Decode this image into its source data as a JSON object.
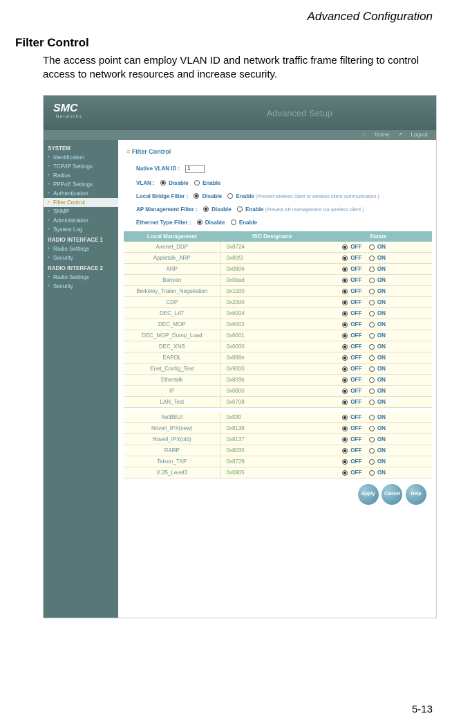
{
  "header": "Advanced Configuration",
  "title": "Filter Control",
  "desc": "The access point can employ VLAN ID and network traffic frame filtering to control access to network resources and increase security.",
  "page_num": "5-13",
  "ui": {
    "logo": "SMC",
    "logo_sub": "N e t w o r k s",
    "banner_title": "Advanced Setup",
    "home": "Home",
    "logout": "Logout",
    "sidebar": {
      "system_hdr": "SYSTEM",
      "items1": [
        {
          "label": "Identification"
        },
        {
          "label": "TCP/IP Settings"
        },
        {
          "label": "Radius"
        },
        {
          "label": "PPPoE Settings"
        },
        {
          "label": "Authentication"
        },
        {
          "label": "Filter Control",
          "active": true
        },
        {
          "label": "SNMP"
        },
        {
          "label": "Administration"
        },
        {
          "label": "System Log"
        }
      ],
      "ri1_hdr": "RADIO INTERFACE 1",
      "ri1": [
        {
          "label": "Radio Settings"
        },
        {
          "label": "Security"
        }
      ],
      "ri2_hdr": "RADIO INTERFACE 2",
      "ri2": [
        {
          "label": "Radio Settings"
        },
        {
          "label": "Security"
        }
      ]
    },
    "crumb": "Filter Control",
    "fields": {
      "native_vlan": {
        "label": "Native VLAN ID  :",
        "value": "1"
      },
      "vlan": {
        "label": "VLAN  :",
        "disable": "Disable",
        "enable": "Enable"
      },
      "bridge": {
        "label": "Local Bridge Filter  :",
        "disable": "Disable",
        "enable": "Enable",
        "note": "(Prevent wireless client to wireless client communication.)"
      },
      "apmgmt": {
        "label": "AP Management Filter  :",
        "disable": "Disable",
        "enable": "Enable",
        "note": "(Prevent AP mamagement via wireless client.)"
      },
      "ether": {
        "label": "Ethernet Type Filter  :",
        "disable": "Disable",
        "enable": "Enable"
      }
    },
    "table": {
      "h1": "Local Management",
      "h2": "ISO Designator",
      "h3": "Status",
      "off": "OFF",
      "on": "ON",
      "rows1": [
        {
          "name": "Aironet_DDP",
          "iso": "0x8724"
        },
        {
          "name": "Appletalk_ARP",
          "iso": "0x80f3"
        },
        {
          "name": "ARP",
          "iso": "0x0806"
        },
        {
          "name": "Banyan",
          "iso": "0x0bad"
        },
        {
          "name": "Berkeley_Trailer_Negotiation",
          "iso": "0x1000"
        },
        {
          "name": "CDP",
          "iso": "0x2000"
        },
        {
          "name": "DEC_LAT",
          "iso": "0x6004"
        },
        {
          "name": "DEC_MOP",
          "iso": "0x6002"
        },
        {
          "name": "DEC_MOP_Dump_Load",
          "iso": "0x6001"
        },
        {
          "name": "DEC_XNS",
          "iso": "0x6000"
        },
        {
          "name": "EAPOL",
          "iso": "0x888e"
        },
        {
          "name": "Enet_Config_Test",
          "iso": "0x9000"
        },
        {
          "name": "Ethertalk",
          "iso": "0x809b"
        },
        {
          "name": "IP",
          "iso": "0x0800"
        },
        {
          "name": "LAN_Test",
          "iso": "0x0708"
        }
      ],
      "rows2": [
        {
          "name": "NetBEUI",
          "iso": "0xf0f0"
        },
        {
          "name": "Novell_IPX(new)",
          "iso": "0x8138"
        },
        {
          "name": "Novell_IPX(old)",
          "iso": "0x8137"
        },
        {
          "name": "RARP",
          "iso": "0x8035"
        },
        {
          "name": "Telxon_TXP",
          "iso": "0x8729"
        },
        {
          "name": "X.25_Level3",
          "iso": "0x0805"
        }
      ]
    },
    "btns": {
      "apply": "Apply",
      "cancel": "Cancel",
      "help": "Help"
    }
  }
}
